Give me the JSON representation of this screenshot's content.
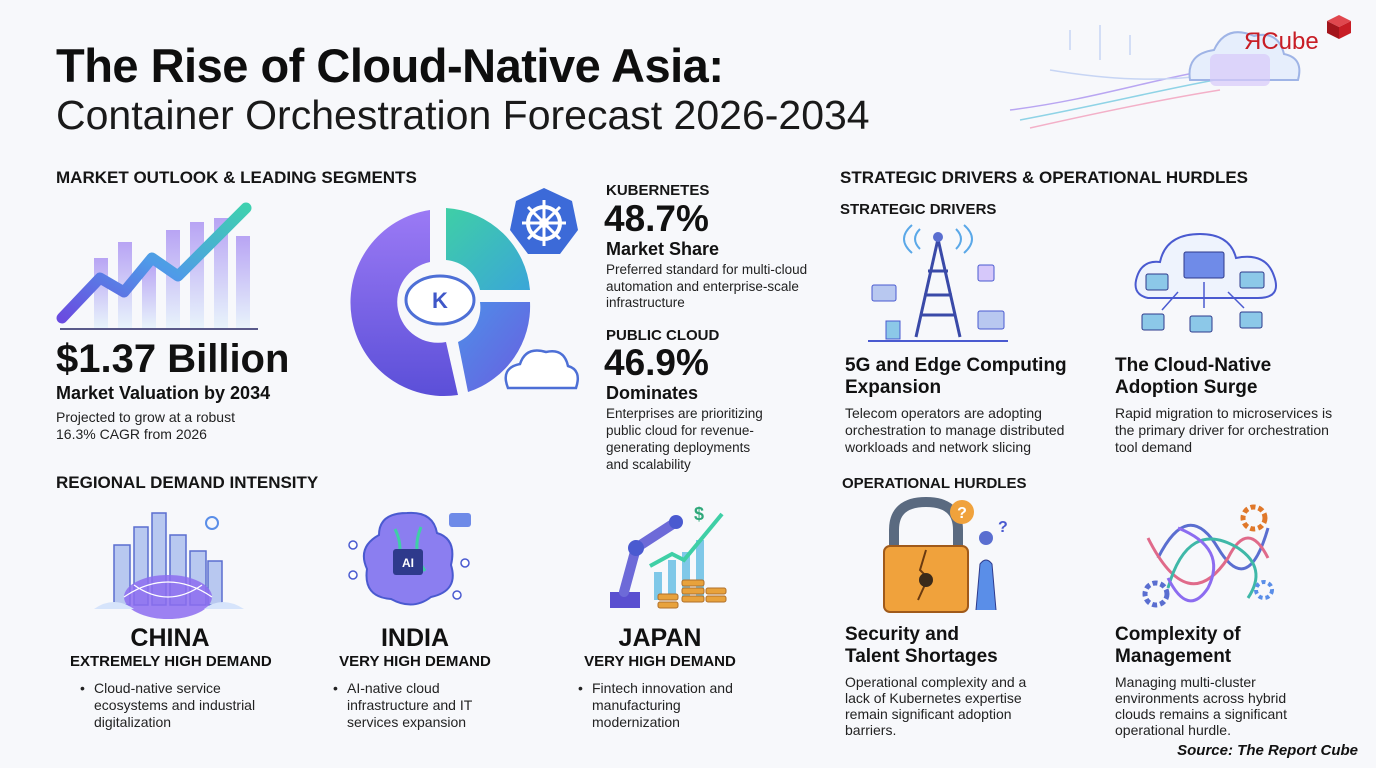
{
  "header": {
    "title_line1": "The Rise of Cloud-Native Asia:",
    "title_line2": "Container Orchestration Forecast 2026-2034"
  },
  "logo": {
    "text": "ЯCube"
  },
  "market": {
    "section_title": "MARKET OUTLOOK & LEADING SEGMENTS",
    "valuation": "$1.37 Billion",
    "valuation_label": "Market Valuation by 2034",
    "valuation_note": "Projected to grow at a robust 16.3% CAGR from 2026",
    "kubernetes": {
      "label": "KUBERNETES",
      "value": "48.7%",
      "sub": "Market Share",
      "text": "Preferred standard for multi-cloud automation and enterprise-scale infrastructure"
    },
    "public_cloud": {
      "label": "PUBLIC CLOUD",
      "value": "46.9%",
      "sub": "Dominates",
      "text": "Enterprises are prioritizing public cloud for revenue-generating deployments and scalability"
    },
    "donut_center_letter": "K"
  },
  "regional": {
    "section_title": "REGIONAL DEMAND INTENSITY",
    "regions": [
      {
        "name": "CHINA",
        "level": "EXTREMELY HIGH DEMAND",
        "text": "Cloud-native service ecosystems and industrial digitalization"
      },
      {
        "name": "INDIA",
        "level": "VERY HIGH DEMAND",
        "text": "AI-native cloud infrastructure and IT services expansion"
      },
      {
        "name": "JAPAN",
        "level": "VERY HIGH DEMAND",
        "text": "Fintech innovation and manufacturing modernization"
      }
    ],
    "ai_chip_label": "AI"
  },
  "strategic": {
    "section_title": "STRATEGIC DRIVERS & OPERATIONAL HURDLES",
    "drivers_title": "STRATEGIC DRIVERS",
    "drivers": [
      {
        "title": "5G and Edge Computing Expansion",
        "text": "Telecom operators are adopting orchestration to manage distributed workloads and network slicing"
      },
      {
        "title": "The Cloud-Native Adoption Surge",
        "text": "Rapid migration to microservices is the primary driver for orchestration tool demand"
      }
    ],
    "hurdles_title": "OPERATIONAL HURDLES",
    "hurdles": [
      {
        "title": "Security and Talent Shortages",
        "text": "Operational complexity and a lack of Kubernetes expertise remain significant adoption barriers."
      },
      {
        "title": "Complexity of Management",
        "text": "Managing multi-cluster environments across hybrid clouds remains a significant operational hurdle."
      }
    ]
  },
  "source": "Source: The Report Cube",
  "colors": {
    "accent_purple": "#7b5cf0",
    "accent_teal": "#2fb8a8",
    "accent_blue": "#3f6fe0",
    "logo_red": "#c81d25"
  }
}
